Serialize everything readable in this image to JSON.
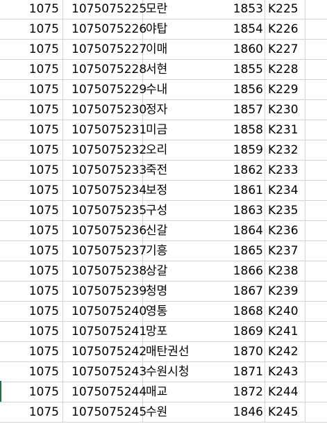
{
  "sheet": {
    "rows": [
      {
        "a": "1075",
        "b": "1075075225",
        "c": "모란",
        "d": "1853",
        "e": "K225"
      },
      {
        "a": "1075",
        "b": "1075075226",
        "c": "야탑",
        "d": "1854",
        "e": "K226"
      },
      {
        "a": "1075",
        "b": "1075075227",
        "c": "이매",
        "d": "1860",
        "e": "K227"
      },
      {
        "a": "1075",
        "b": "1075075228",
        "c": "서현",
        "d": "1855",
        "e": "K228"
      },
      {
        "a": "1075",
        "b": "1075075229",
        "c": "수내",
        "d": "1856",
        "e": "K229"
      },
      {
        "a": "1075",
        "b": "1075075230",
        "c": "정자",
        "d": "1857",
        "e": "K230"
      },
      {
        "a": "1075",
        "b": "1075075231",
        "c": "미금",
        "d": "1858",
        "e": "K231"
      },
      {
        "a": "1075",
        "b": "1075075232",
        "c": "오리",
        "d": "1859",
        "e": "K232"
      },
      {
        "a": "1075",
        "b": "1075075233",
        "c": "죽전",
        "d": "1862",
        "e": "K233"
      },
      {
        "a": "1075",
        "b": "1075075234",
        "c": "보정",
        "d": "1861",
        "e": "K234"
      },
      {
        "a": "1075",
        "b": "1075075235",
        "c": "구성",
        "d": "1863",
        "e": "K235"
      },
      {
        "a": "1075",
        "b": "1075075236",
        "c": "신갈",
        "d": "1864",
        "e": "K236"
      },
      {
        "a": "1075",
        "b": "1075075237",
        "c": "기흥",
        "d": "1865",
        "e": "K237"
      },
      {
        "a": "1075",
        "b": "1075075238",
        "c": "상갈",
        "d": "1866",
        "e": "K238"
      },
      {
        "a": "1075",
        "b": "1075075239",
        "c": "청명",
        "d": "1867",
        "e": "K239"
      },
      {
        "a": "1075",
        "b": "1075075240",
        "c": "영통",
        "d": "1868",
        "e": "K240"
      },
      {
        "a": "1075",
        "b": "1075075241",
        "c": "망포",
        "d": "1869",
        "e": "K241"
      },
      {
        "a": "1075",
        "b": "1075075242",
        "c": "매탄권선",
        "d": "1870",
        "e": "K242"
      },
      {
        "a": "1075",
        "b": "1075075243",
        "c": "수원시청",
        "d": "1871",
        "e": "K243"
      },
      {
        "a": "1075",
        "b": "1075075244",
        "c": "매교",
        "d": "1872",
        "e": "K244"
      },
      {
        "a": "1075",
        "b": "1075075245",
        "c": "수원",
        "d": "1846",
        "e": "K245"
      }
    ]
  },
  "colors": {
    "gridline": "#d4d4d4",
    "text": "#000000",
    "selection_accent": "#1e7145"
  }
}
